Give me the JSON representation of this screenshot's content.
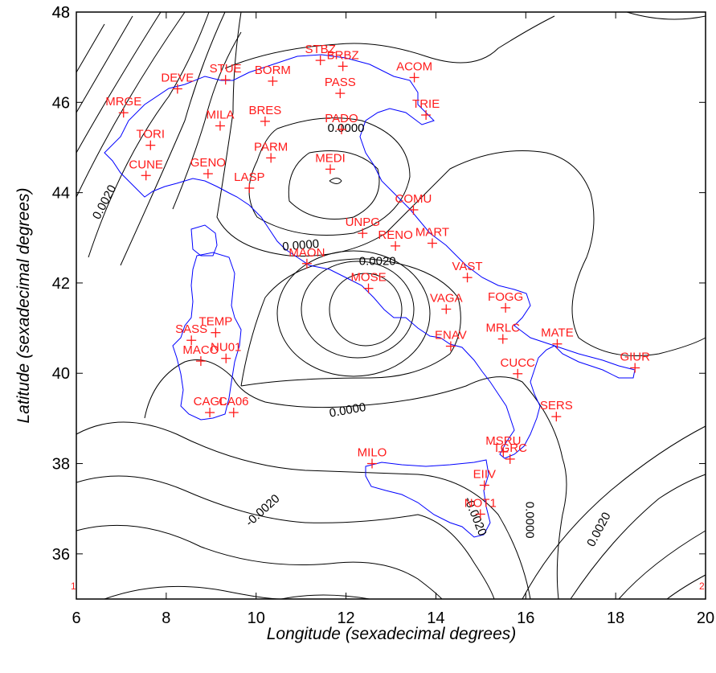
{
  "axes": {
    "xlabel": "Longitude (sexadecimal degrees)",
    "ylabel": "Latitude (sexadecimal degrees)",
    "xlim": [
      6,
      20
    ],
    "ylim": [
      35,
      48
    ],
    "xticks": [
      "6",
      "8",
      "10",
      "12",
      "14",
      "16",
      "18",
      "20"
    ],
    "yticks": [
      "36",
      "38",
      "40",
      "42",
      "44",
      "46",
      "48"
    ]
  },
  "corner_marks": [
    "1",
    "2"
  ],
  "colors": {
    "coastline": "#0000ff",
    "stations": "#ff1a1a",
    "contours": "#000000"
  },
  "contour_labels": [
    {
      "text": "0.0000",
      "lon": 12.0,
      "lat": 45.35,
      "angle": 0
    },
    {
      "text": "0.0020",
      "lon": 6.7,
      "lat": 43.75,
      "angle": -62
    },
    {
      "text": "0.0000",
      "lon": 11.0,
      "lat": 42.75,
      "angle": -5
    },
    {
      "text": "0.0020",
      "lon": 12.7,
      "lat": 42.4,
      "angle": 0
    },
    {
      "text": "0.0000",
      "lon": 12.05,
      "lat": 39.1,
      "angle": -10
    },
    {
      "text": "-0.0020",
      "lon": 10.2,
      "lat": 36.9,
      "angle": -42
    },
    {
      "text": "-0.0020",
      "lon": 14.8,
      "lat": 36.8,
      "angle": 68
    },
    {
      "text": "0.0000",
      "lon": 16.0,
      "lat": 36.75,
      "angle": 90
    },
    {
      "text": "0.0020",
      "lon": 17.7,
      "lat": 36.5,
      "angle": -62
    }
  ],
  "stations": [
    {
      "code": "STBZ",
      "lon": 11.43,
      "lat": 46.93
    },
    {
      "code": "BRBZ",
      "lon": 11.93,
      "lat": 46.8
    },
    {
      "code": "STUE",
      "lon": 9.32,
      "lat": 46.5
    },
    {
      "code": "BORM",
      "lon": 10.37,
      "lat": 46.47
    },
    {
      "code": "DEVE",
      "lon": 8.25,
      "lat": 46.3
    },
    {
      "code": "ACOM",
      "lon": 13.52,
      "lat": 46.55
    },
    {
      "code": "PASS",
      "lon": 11.87,
      "lat": 46.2
    },
    {
      "code": "TRIE",
      "lon": 13.78,
      "lat": 45.72
    },
    {
      "code": "MRGE",
      "lon": 7.05,
      "lat": 45.77
    },
    {
      "code": "MILA",
      "lon": 9.2,
      "lat": 45.48
    },
    {
      "code": "BRES",
      "lon": 10.2,
      "lat": 45.58
    },
    {
      "code": "PADO",
      "lon": 11.9,
      "lat": 45.4
    },
    {
      "code": "TORI",
      "lon": 7.65,
      "lat": 45.05
    },
    {
      "code": "PARM",
      "lon": 10.33,
      "lat": 44.77
    },
    {
      "code": "MEDI",
      "lon": 11.65,
      "lat": 44.52
    },
    {
      "code": "CUNE",
      "lon": 7.55,
      "lat": 44.38
    },
    {
      "code": "GENO",
      "lon": 8.93,
      "lat": 44.42
    },
    {
      "code": "LASP",
      "lon": 9.85,
      "lat": 44.1
    },
    {
      "code": "COMU",
      "lon": 13.5,
      "lat": 43.62
    },
    {
      "code": "UNPG",
      "lon": 12.37,
      "lat": 43.1
    },
    {
      "code": "RENO",
      "lon": 13.1,
      "lat": 42.82
    },
    {
      "code": "MART",
      "lon": 13.92,
      "lat": 42.88
    },
    {
      "code": "MAON",
      "lon": 11.13,
      "lat": 42.43
    },
    {
      "code": "MOSE",
      "lon": 12.5,
      "lat": 41.88
    },
    {
      "code": "VAST",
      "lon": 14.7,
      "lat": 42.12
    },
    {
      "code": "FOGG",
      "lon": 15.55,
      "lat": 41.45
    },
    {
      "code": "VAGA",
      "lon": 14.23,
      "lat": 41.42
    },
    {
      "code": "TEMP",
      "lon": 9.1,
      "lat": 40.9
    },
    {
      "code": "SASS",
      "lon": 8.56,
      "lat": 40.73
    },
    {
      "code": "NU01",
      "lon": 9.33,
      "lat": 40.33
    },
    {
      "code": "MACO",
      "lon": 8.77,
      "lat": 40.27
    },
    {
      "code": "ENAV",
      "lon": 14.33,
      "lat": 40.6
    },
    {
      "code": "MRLC",
      "lon": 15.49,
      "lat": 40.76
    },
    {
      "code": "MATE",
      "lon": 16.7,
      "lat": 40.65
    },
    {
      "code": "GIUR",
      "lon": 18.43,
      "lat": 40.12
    },
    {
      "code": "CUCC",
      "lon": 15.82,
      "lat": 39.99
    },
    {
      "code": "CAGL",
      "lon": 8.97,
      "lat": 39.13
    },
    {
      "code": "CA06",
      "lon": 9.5,
      "lat": 39.13
    },
    {
      "code": "SERS",
      "lon": 16.68,
      "lat": 39.04
    },
    {
      "code": "MSRU",
      "lon": 15.5,
      "lat": 38.26
    },
    {
      "code": "TGRC",
      "lon": 15.65,
      "lat": 38.1
    },
    {
      "code": "MILO",
      "lon": 12.58,
      "lat": 38.0
    },
    {
      "code": "EIIV",
      "lon": 15.08,
      "lat": 37.52
    },
    {
      "code": "NOT1",
      "lon": 14.99,
      "lat": 36.88
    }
  ]
}
